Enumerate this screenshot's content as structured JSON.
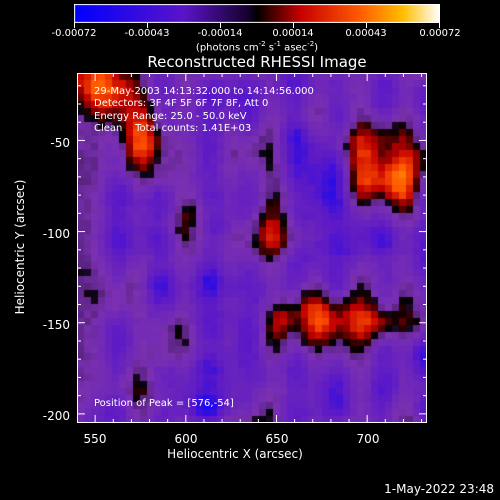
{
  "colorbar": {
    "tick_labels": [
      "-0.00072",
      "-0.00043",
      "-0.00014",
      "0.00014",
      "0.00043",
      "0.00072"
    ],
    "units_prefix": "(photons cm",
    "units_exp1": "-2",
    "units_mid1": " s",
    "units_exp2": "-1",
    "units_mid2": " asec",
    "units_exp3": "-2",
    "units_suffix": ")"
  },
  "title": "Reconstructed RHESSI Image",
  "annotations": {
    "time_range": "29-May-2003 14:13:32.000 to 14:14:56.000",
    "detectors": "Detectors: 3F 4F 5F 6F 7F 8F, Att 0",
    "energy_range": "Energy Range: 25.0 - 50.0 keV",
    "clean_counts": "Clean    Total counts: 1.41E+03",
    "peak_position": "Position of Peak = [576,-54]"
  },
  "axes": {
    "xlabel": "Heliocentric X (arcsec)",
    "ylabel": "Heliocentric Y (arcsec)",
    "x_ticks": [
      "550",
      "600",
      "650",
      "700"
    ],
    "y_ticks": [
      "-50",
      "-100",
      "-150",
      "-200"
    ],
    "x_tick_values": [
      550,
      600,
      650,
      700
    ],
    "y_tick_values": [
      -50,
      -100,
      -150,
      -200
    ],
    "xlim": [
      540,
      733
    ],
    "ylim": [
      -205,
      -13
    ]
  },
  "timestamp": "1-May-2022 23:48",
  "colors": {
    "colormap": [
      "#0000ff",
      "#5a18c8",
      "#7a30b0",
      "#000000",
      "#c00000",
      "#ff5000",
      "#ffa000",
      "#ffff80"
    ]
  }
}
